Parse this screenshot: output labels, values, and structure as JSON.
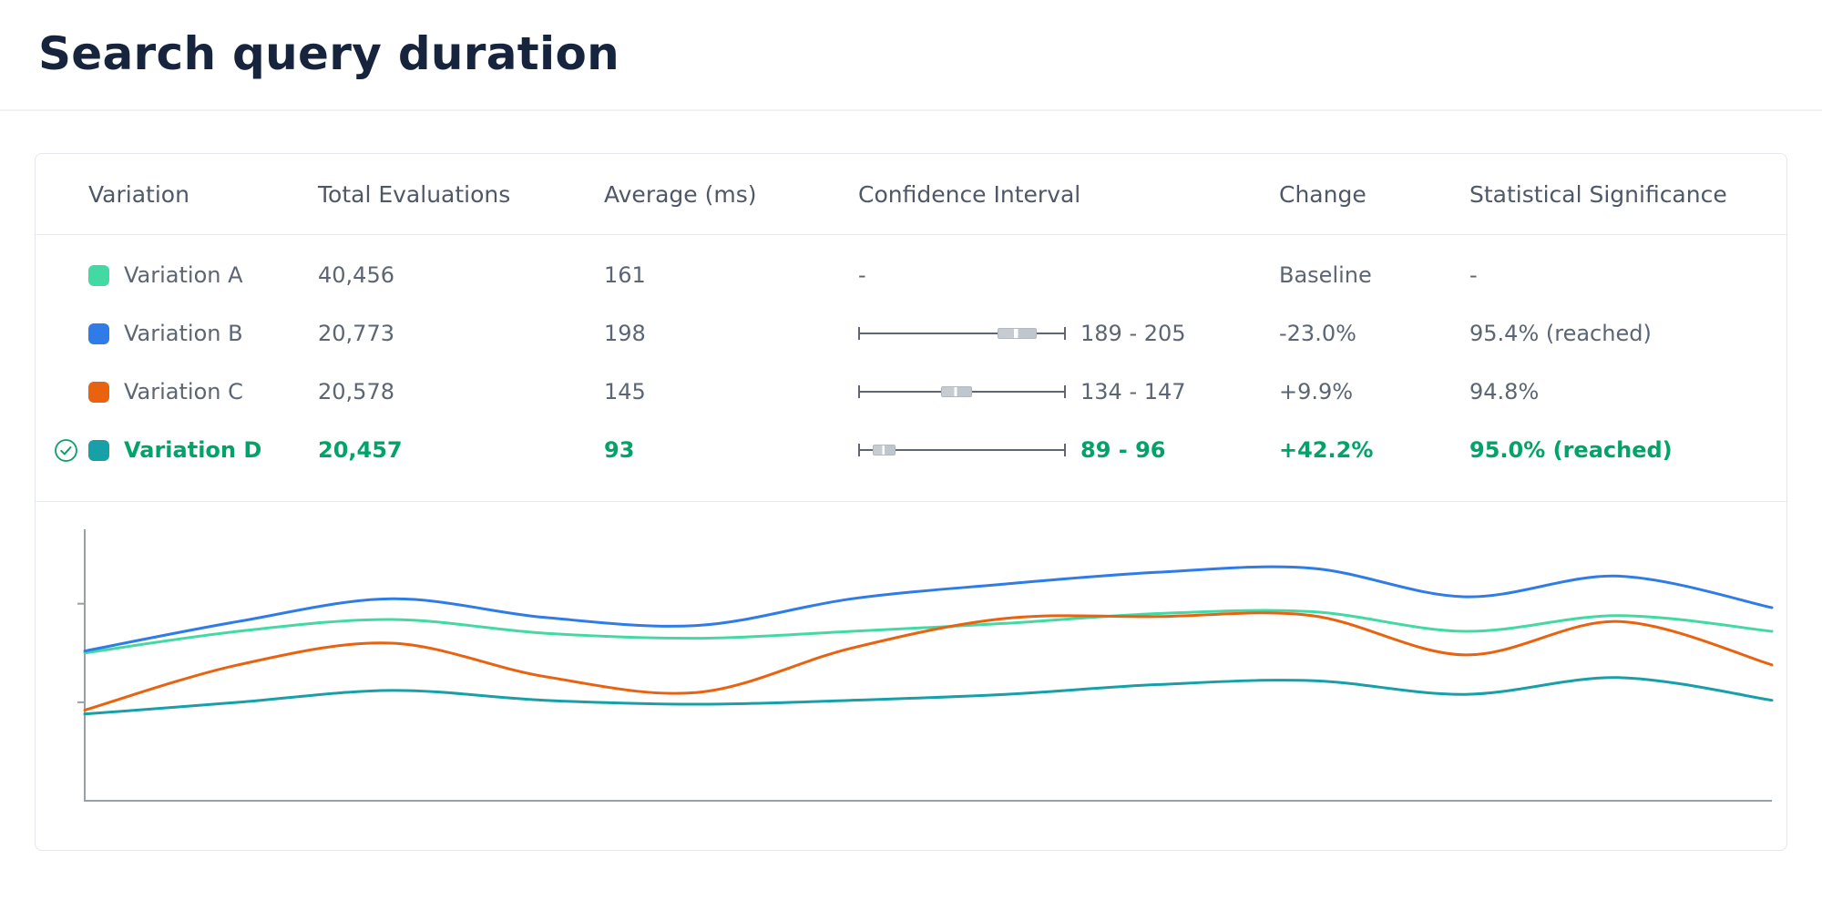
{
  "page": {
    "title": "Search query duration"
  },
  "table": {
    "columns": [
      "Variation",
      "Total Evaluations",
      "Average (ms)",
      "Confidence Interval",
      "Change",
      "Statistical Significance"
    ],
    "rows": [
      {
        "name": "Variation A",
        "color": "#43d9a3",
        "evaluations": "40,456",
        "average": "161",
        "ci_label": "-",
        "ci": null,
        "change": "Baseline",
        "significance": "-",
        "winner": false
      },
      {
        "name": "Variation B",
        "color": "#2f7ce8",
        "evaluations": "20,773",
        "average": "198",
        "ci_label": "189 - 205",
        "ci": {
          "box_left_pct": 67,
          "box_width_pct": 19
        },
        "change": "-23.0%",
        "significance": "95.4% (reached)",
        "winner": false
      },
      {
        "name": "Variation C",
        "color": "#e96210",
        "evaluations": "20,578",
        "average": "145",
        "ci_label": "134 - 147",
        "ci": {
          "box_left_pct": 40,
          "box_width_pct": 15
        },
        "change": "+9.9%",
        "significance": "94.8%",
        "winner": false
      },
      {
        "name": "Variation D",
        "color": "#18a0a8",
        "evaluations": "20,457",
        "average": "93",
        "ci_label": "89 - 96",
        "ci": {
          "box_left_pct": 7,
          "box_width_pct": 11
        },
        "change": "+42.2%",
        "significance": "95.0% (reached)",
        "winner": true
      }
    ],
    "winner_color": "#00a468",
    "winner_icon": "check-circle"
  },
  "chart_data": {
    "type": "line",
    "title": "",
    "xlabel": "",
    "ylabel": "",
    "x": [
      0,
      1,
      2,
      3,
      4,
      5,
      6,
      7,
      8,
      9,
      10,
      11
    ],
    "ylim": [
      0,
      270
    ],
    "yticks": [
      100,
      200
    ],
    "legend": false,
    "grid": false,
    "series": [
      {
        "name": "Variation A",
        "color": "#43d9a3",
        "values": [
          150,
          172,
          184,
          170,
          165,
          172,
          180,
          190,
          192,
          172,
          188,
          172
        ]
      },
      {
        "name": "Variation B",
        "color": "#2f7ce8",
        "values": [
          152,
          182,
          205,
          186,
          178,
          205,
          220,
          232,
          236,
          207,
          228,
          196
        ]
      },
      {
        "name": "Variation C",
        "color": "#e96210",
        "values": [
          92,
          138,
          160,
          126,
          110,
          155,
          185,
          187,
          188,
          148,
          182,
          138
        ]
      },
      {
        "name": "Variation D",
        "color": "#18a0a8",
        "values": [
          88,
          100,
          112,
          102,
          98,
          102,
          108,
          118,
          122,
          108,
          125,
          102
        ]
      }
    ]
  }
}
